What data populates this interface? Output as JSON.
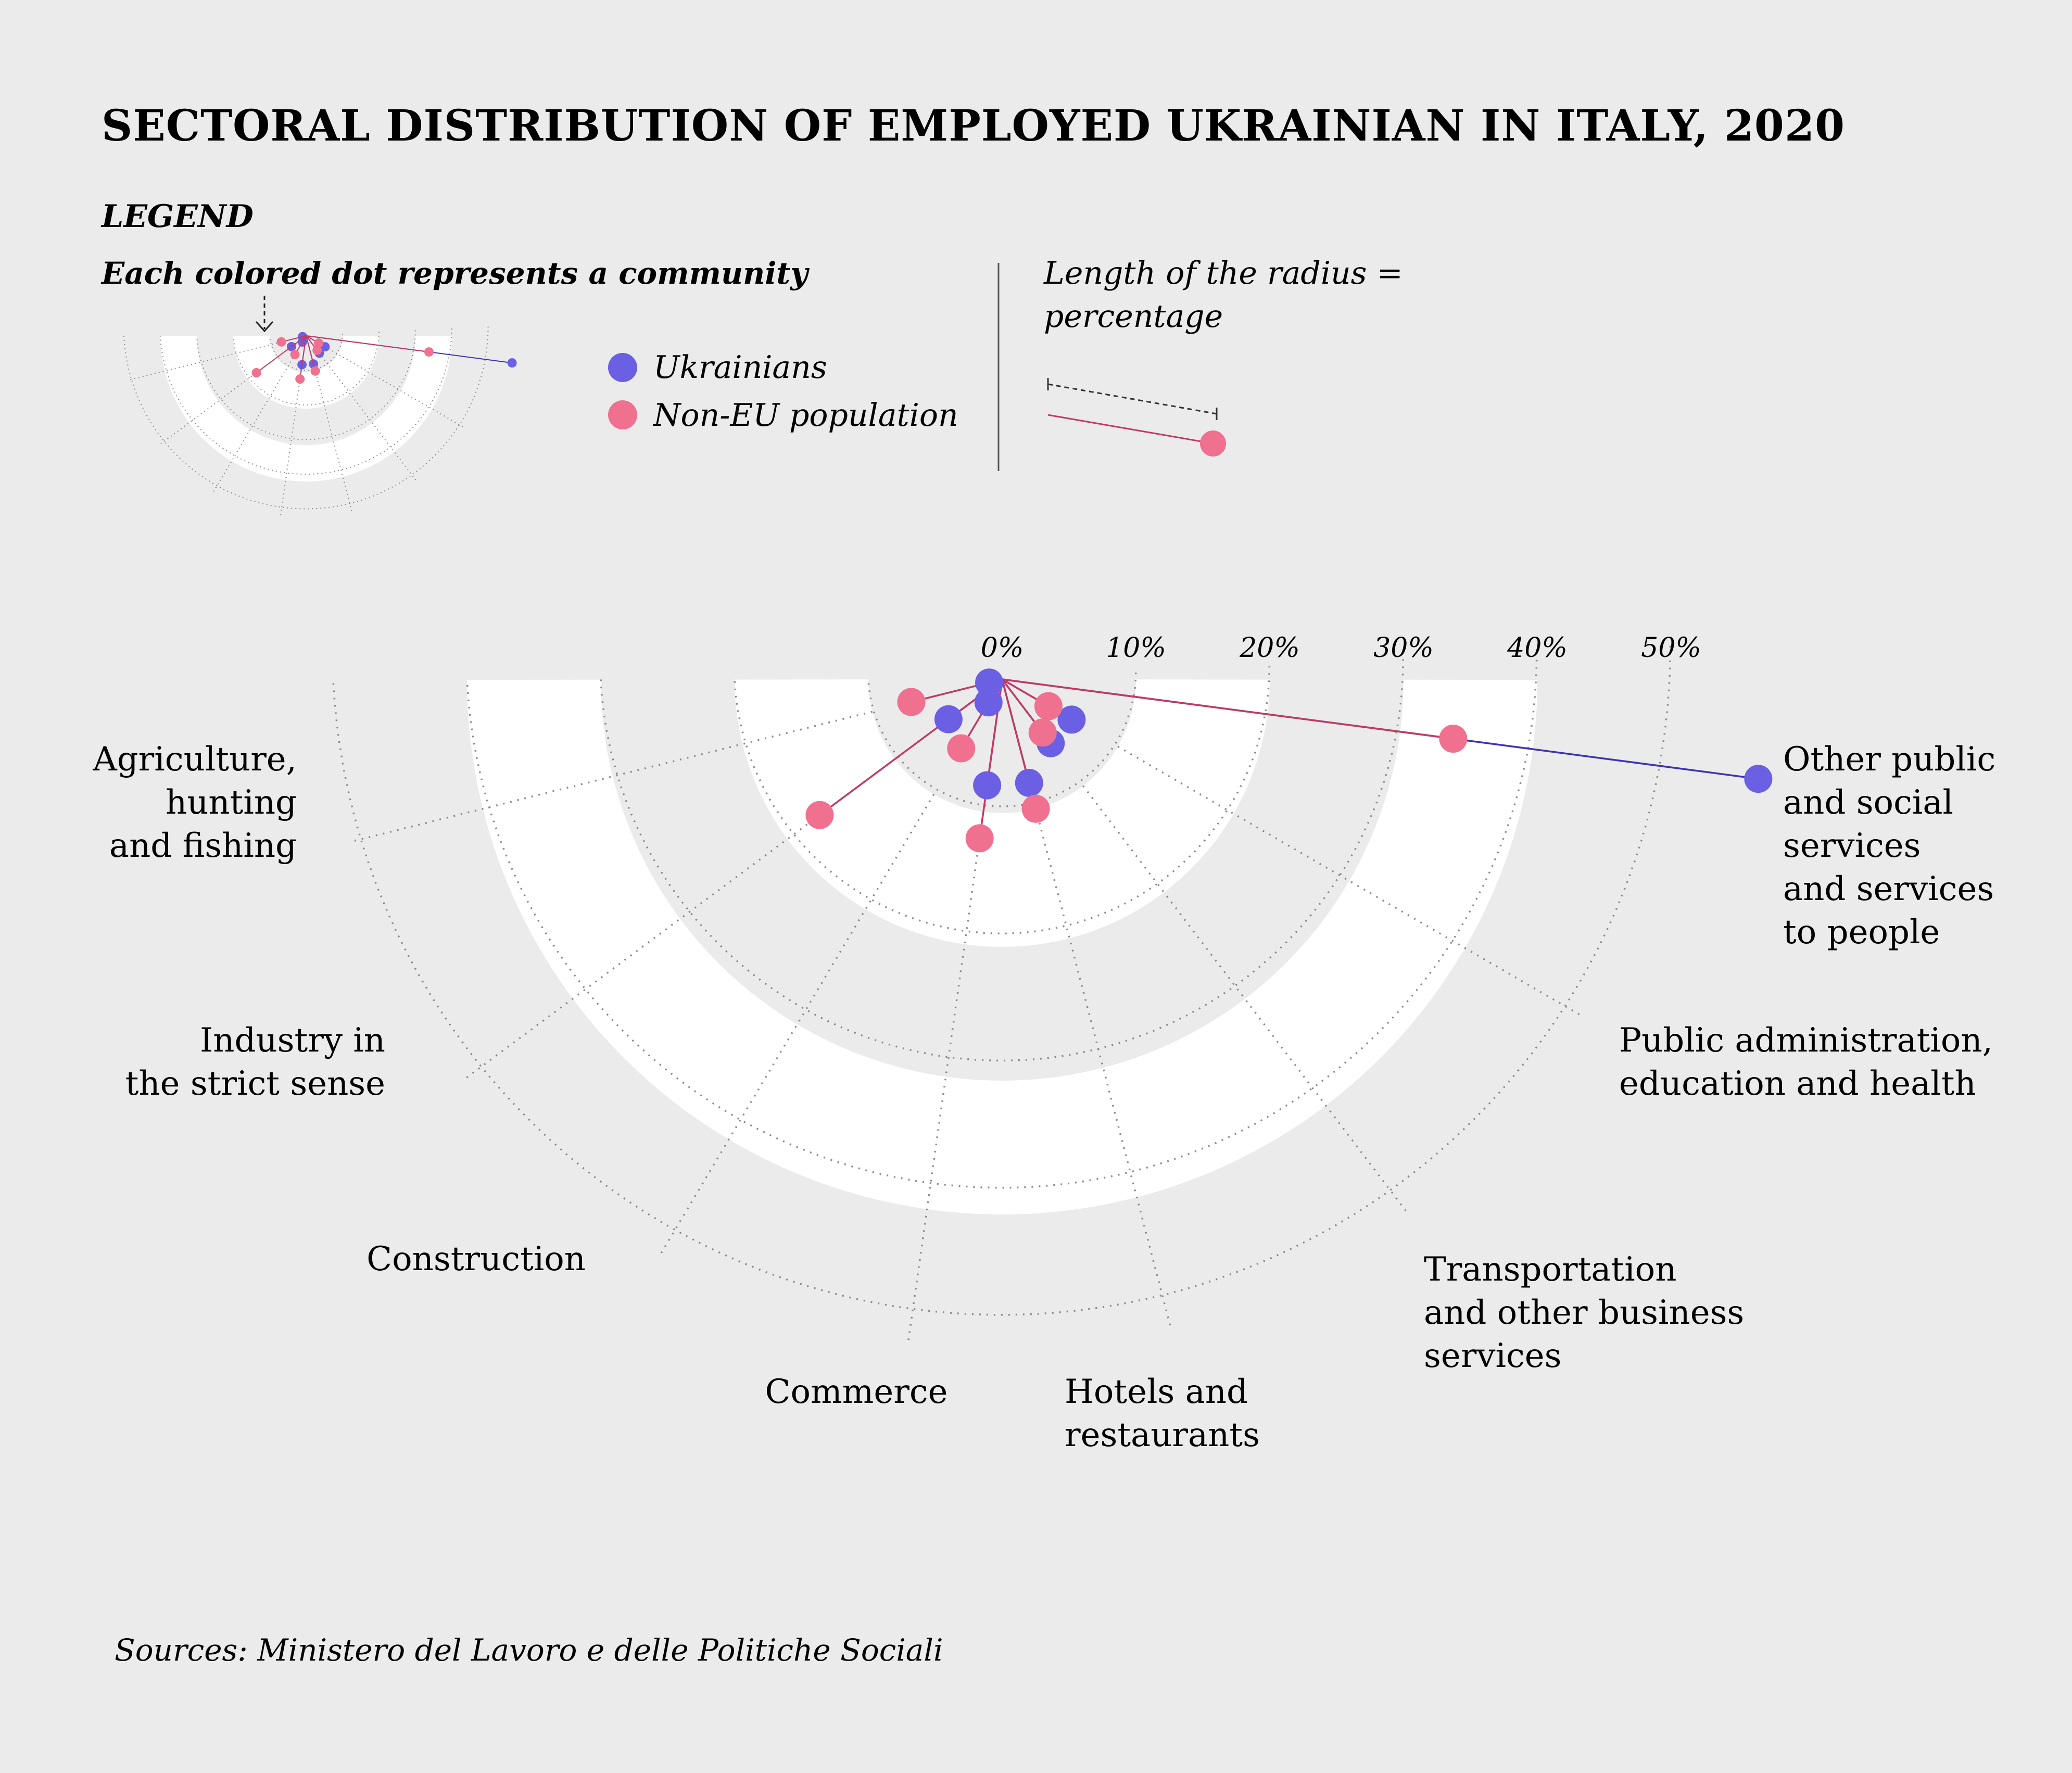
{
  "title": "SECTORAL DISTRIBUTION OF EMPLOYED UKRAINIAN IN ITALY, 2020",
  "legend": {
    "heading": "LEGEND",
    "dot_note": "Each colored dot represents a community",
    "radius_note_line1": "Length of the radius =",
    "radius_note_line2": "percentage",
    "ukrainians": "Ukrainians",
    "non_eu": "Non-EU population"
  },
  "source": "Sources: Ministero del Lavoro e delle Politiche Sociali",
  "colors": {
    "background": "#ebebeb",
    "ukrainians": "#6b5fe3",
    "non_eu": "#f0708f",
    "ring": "#ffffff",
    "grid": "#8a8a8a"
  },
  "chart_data": {
    "type": "radial-scatter",
    "title": "SECTORAL DISTRIBUTION OF EMPLOYED UKRAINIAN IN ITALY, 2020",
    "radius_ticks": [
      "0%",
      "10%",
      "20%",
      "30%",
      "40%",
      "50%"
    ],
    "rlim": [
      0,
      50
    ],
    "categories": [
      {
        "lines": [
          "Agriculture,",
          "hunting",
          "and fishing"
        ]
      },
      {
        "lines": [
          "Industry in",
          "the strict sense"
        ]
      },
      {
        "lines": [
          "Construction"
        ]
      },
      {
        "lines": [
          "Commerce"
        ]
      },
      {
        "lines": [
          "Hotels and",
          "restaurants"
        ]
      },
      {
        "lines": [
          "Transportation",
          "and other business",
          "services"
        ]
      },
      {
        "lines": [
          "Public administration,",
          "education and health"
        ]
      },
      {
        "lines": [
          "Other public",
          "and social",
          "services",
          "and services",
          "to people"
        ]
      }
    ],
    "series": [
      {
        "name": "Ukrainians",
        "values": [
          1,
          5,
          2,
          8,
          8,
          6,
          6,
          57
        ]
      },
      {
        "name": "Non-EU population",
        "values": [
          7,
          17,
          6,
          12,
          10,
          5,
          4,
          34
        ]
      }
    ]
  }
}
